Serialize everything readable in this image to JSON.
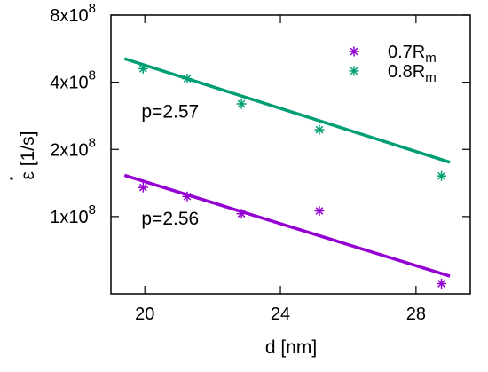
{
  "chart_data": {
    "type": "scatter",
    "xlabel": "d [nm]",
    "ylabel": "ε [1/s]",
    "ylabel_dot": "·",
    "xlim": [
      19,
      29.6
    ],
    "ylim": [
      45000000,
      800000000
    ],
    "yscale": "log",
    "grid": false,
    "legend_position": "top-right",
    "x_ticks": [
      {
        "value": 20,
        "label": "20"
      },
      {
        "value": 24,
        "label": "24"
      },
      {
        "value": 28,
        "label": "28"
      }
    ],
    "y_ticks": [
      {
        "value": 100000000,
        "mant": "1x10",
        "exp": "8"
      },
      {
        "value": 200000000,
        "mant": "2x10",
        "exp": "8"
      },
      {
        "value": 400000000,
        "mant": "4x10",
        "exp": "8"
      },
      {
        "value": 800000000,
        "mant": "8x10",
        "exp": "8"
      }
    ],
    "series": [
      {
        "name_main": "0.7R",
        "name_sub": "m",
        "color": "#9400d3",
        "marker": "asterisk",
        "points": [
          {
            "x": 19.95,
            "y": 135000000
          },
          {
            "x": 21.25,
            "y": 123000000
          },
          {
            "x": 22.85,
            "y": 103000000
          },
          {
            "x": 25.15,
            "y": 106000000
          },
          {
            "x": 28.75,
            "y": 50000000
          }
        ],
        "fit": {
          "x": [
            19.4,
            29.0
          ],
          "y": [
            153000000,
            54000000
          ]
        },
        "annotation": {
          "text": "p=2.56",
          "x": 19.9,
          "y": 92000000
        }
      },
      {
        "name_main": "0.8R",
        "name_sub": "m",
        "color": "#009e73",
        "marker": "asterisk",
        "points": [
          {
            "x": 19.95,
            "y": 460000000
          },
          {
            "x": 21.25,
            "y": 415000000
          },
          {
            "x": 22.85,
            "y": 320000000
          },
          {
            "x": 25.15,
            "y": 245000000
          },
          {
            "x": 28.75,
            "y": 152000000
          }
        ],
        "fit": {
          "x": [
            19.4,
            29.0
          ],
          "y": [
            510000000,
            175000000
          ]
        },
        "annotation": {
          "text": "p=2.57",
          "x": 19.9,
          "y": 278000000
        }
      }
    ]
  }
}
